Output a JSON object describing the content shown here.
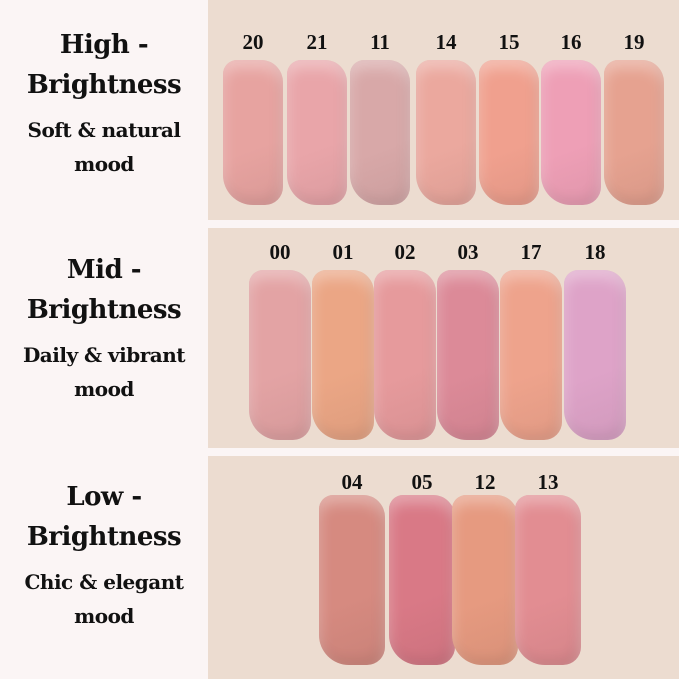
{
  "groups": [
    {
      "title_line1": "High -",
      "title_line2": "Brightness",
      "mood_line1": "Soft & natural",
      "mood_line2": "mood",
      "shades": [
        {
          "code": "20",
          "color": "#e7a3a0"
        },
        {
          "code": "21",
          "color": "#e9a5a9"
        },
        {
          "code": "11",
          "color": "#d8a8a8"
        },
        {
          "code": "14",
          "color": "#eba89e"
        },
        {
          "code": "15",
          "color": "#f0a08e"
        },
        {
          "code": "16",
          "color": "#ee9fb6"
        },
        {
          "code": "19",
          "color": "#e6a290"
        }
      ]
    },
    {
      "title_line1": "Mid -",
      "title_line2": "Brightness",
      "mood_line1": "Daily & vibrant",
      "mood_line2": "mood",
      "shades": [
        {
          "code": "00",
          "color": "#e3a3a4"
        },
        {
          "code": "01",
          "color": "#eba685"
        },
        {
          "code": "02",
          "color": "#e69a9c"
        },
        {
          "code": "03",
          "color": "#dc8a98"
        },
        {
          "code": "17",
          "color": "#eea38c"
        },
        {
          "code": "18",
          "color": "#dea3c8"
        }
      ]
    },
    {
      "title_line1": "Low -",
      "title_line2": "Brightness",
      "mood_line1": "Chic & elegant",
      "mood_line2": "mood",
      "shades": [
        {
          "code": "04",
          "color": "#d68a80"
        },
        {
          "code": "05",
          "color": "#d97986"
        },
        {
          "code": "12",
          "color": "#e69a80"
        },
        {
          "code": "13",
          "color": "#e28d92"
        }
      ]
    }
  ]
}
